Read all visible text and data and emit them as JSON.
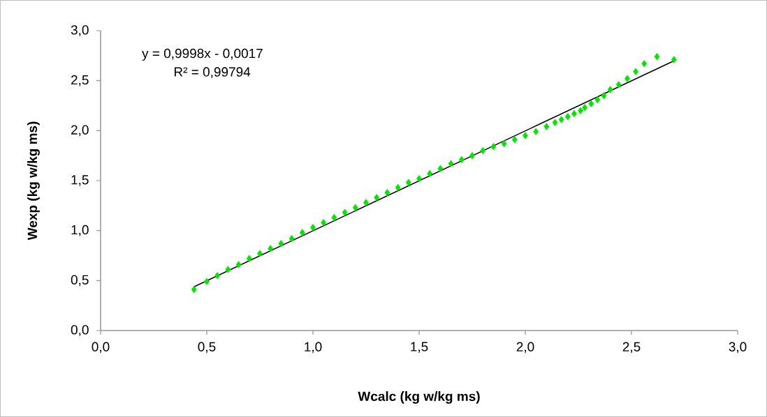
{
  "chart_data": {
    "type": "scatter",
    "xlabel": "Wcalc (kg w/kg ms)",
    "ylabel": "Wexp (kg w/kg ms)",
    "xlim": [
      0,
      3
    ],
    "ylim": [
      0,
      3
    ],
    "xticks": [
      {
        "value": 0,
        "label": "0,0"
      },
      {
        "value": 0.5,
        "label": "0,5"
      },
      {
        "value": 1,
        "label": "1,0"
      },
      {
        "value": 1.5,
        "label": "1,5"
      },
      {
        "value": 2,
        "label": "2,0"
      },
      {
        "value": 2.5,
        "label": "2,5"
      },
      {
        "value": 3,
        "label": "3,0"
      }
    ],
    "yticks": [
      {
        "value": 0,
        "label": "0,0"
      },
      {
        "value": 0.5,
        "label": "0,5"
      },
      {
        "value": 1,
        "label": "1,0"
      },
      {
        "value": 1.5,
        "label": "1,5"
      },
      {
        "value": 2,
        "label": "2,0"
      },
      {
        "value": 2.5,
        "label": "2,5"
      },
      {
        "value": 3,
        "label": "3,0"
      }
    ],
    "grid": false,
    "annotations": [
      "y = 0,9998x - 0,0017",
      "R² = 0,99794"
    ],
    "series": [
      {
        "color": "#00e600",
        "marker": "diamond",
        "x": [
          0.44,
          0.5,
          0.55,
          0.6,
          0.65,
          0.7,
          0.75,
          0.8,
          0.85,
          0.9,
          0.95,
          1.0,
          1.05,
          1.1,
          1.15,
          1.2,
          1.25,
          1.3,
          1.35,
          1.4,
          1.45,
          1.5,
          1.55,
          1.6,
          1.65,
          1.7,
          1.75,
          1.8,
          1.85,
          1.9,
          1.95,
          2.0,
          2.05,
          2.1,
          2.14,
          2.17,
          2.2,
          2.23,
          2.26,
          2.28,
          2.31,
          2.34,
          2.37,
          2.4,
          2.44,
          2.48,
          2.52,
          2.56,
          2.62,
          2.7
        ],
        "values": [
          0.41,
          0.49,
          0.55,
          0.61,
          0.66,
          0.72,
          0.77,
          0.82,
          0.87,
          0.92,
          0.98,
          1.03,
          1.08,
          1.13,
          1.18,
          1.23,
          1.28,
          1.33,
          1.38,
          1.43,
          1.48,
          1.52,
          1.57,
          1.62,
          1.67,
          1.71,
          1.75,
          1.8,
          1.84,
          1.87,
          1.91,
          1.95,
          1.99,
          2.04,
          2.08,
          2.11,
          2.14,
          2.17,
          2.2,
          2.23,
          2.27,
          2.31,
          2.35,
          2.41,
          2.46,
          2.52,
          2.59,
          2.67,
          2.74,
          2.71
        ]
      },
      {
        "type": "line",
        "color": "#000000",
        "marker": "none",
        "line_style": "solid",
        "x": [
          0.44,
          2.7
        ],
        "values": [
          0.438,
          2.698
        ]
      }
    ]
  }
}
